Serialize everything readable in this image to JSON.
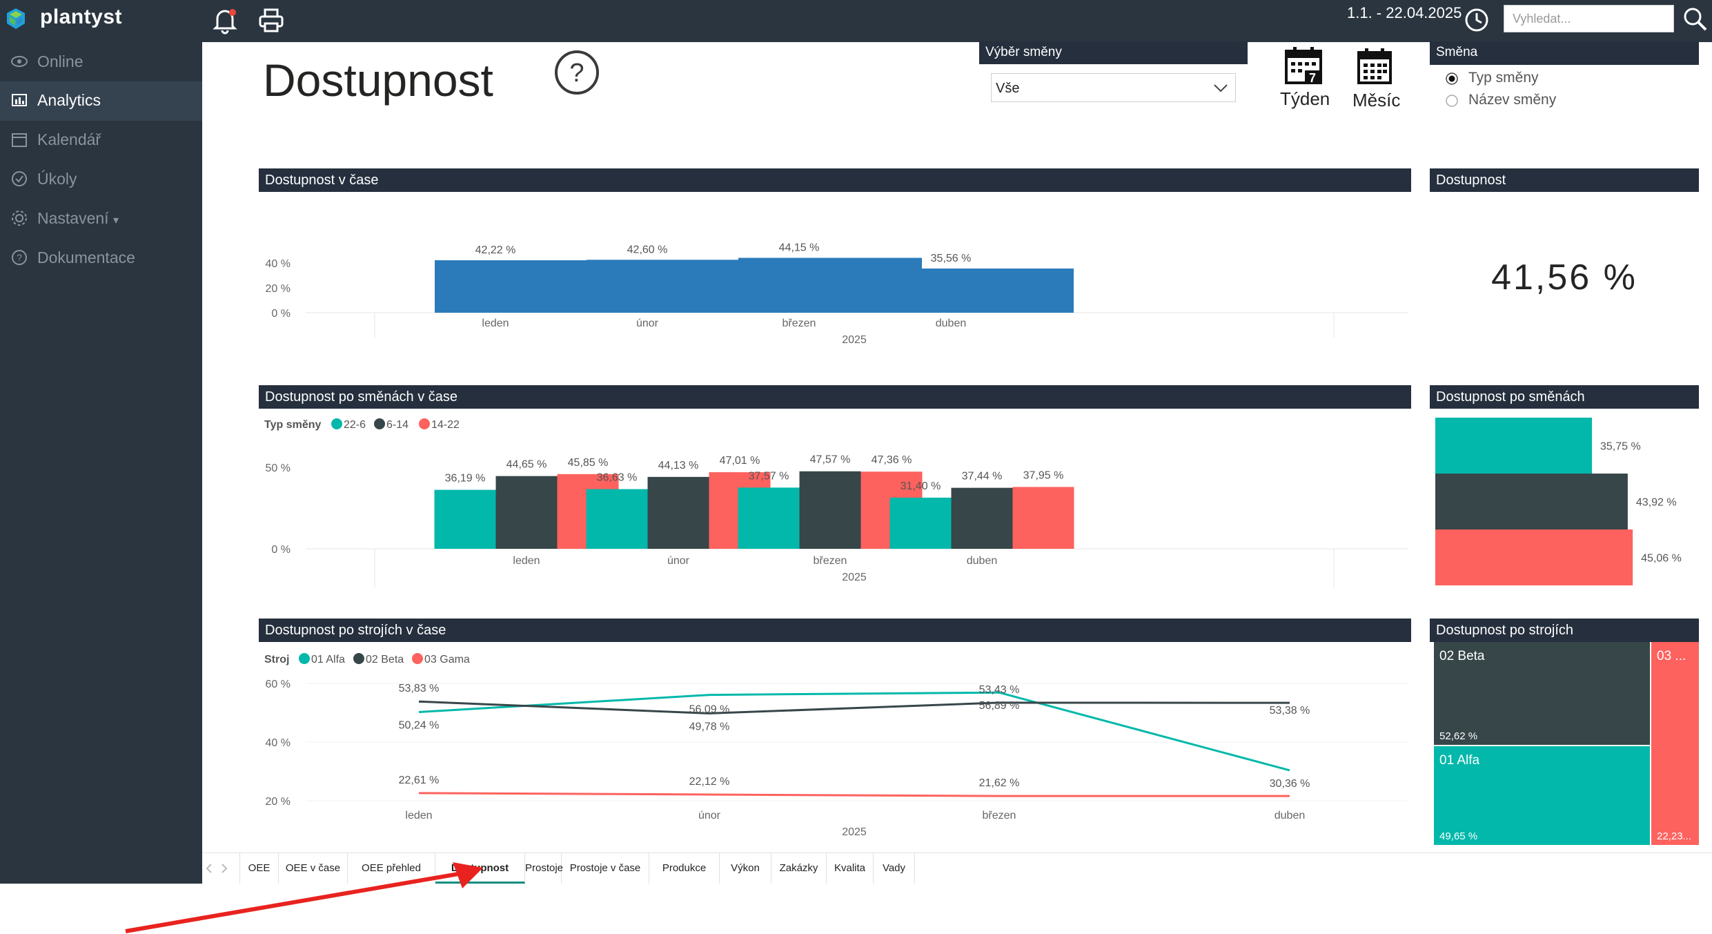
{
  "app": {
    "name": "plantyst"
  },
  "sidebar": {
    "items": [
      {
        "label": "Online",
        "icon": "eye-icon",
        "active": false
      },
      {
        "label": "Analytics",
        "icon": "bar-chart-icon",
        "active": true
      },
      {
        "label": "Kalendář",
        "icon": "calendar-icon",
        "active": false
      },
      {
        "label": "Úkoly",
        "icon": "check-circle-icon",
        "active": false
      },
      {
        "label": "Nastavení",
        "icon": "gear-icon",
        "active": false,
        "caret": "▾"
      },
      {
        "label": "Dokumentace",
        "icon": "help-circle-icon",
        "active": false
      }
    ]
  },
  "topbar": {
    "date_range": "1.1. - 22.04.2025",
    "search_placeholder": "Vyhledat..."
  },
  "report": {
    "title": "Dostupnost",
    "help_glyph": "?",
    "shift_select": {
      "header": "Výběr směny",
      "value": "Vše"
    },
    "period_buttons": {
      "week": "Týden",
      "week_day": "7",
      "month": "Měsíc"
    },
    "shift_radio": {
      "header": "Směna",
      "options": [
        {
          "label": "Typ směny",
          "checked": true
        },
        {
          "label": "Název směny",
          "checked": false
        }
      ]
    },
    "kpi": {
      "header": "Dostupnost",
      "value": "41,56 %"
    }
  },
  "chart_data": [
    {
      "type": "bar",
      "title": "Dostupnost v čase",
      "categories": [
        "leden",
        "únor",
        "březen",
        "duben"
      ],
      "xgroup": "2025",
      "values": [
        42.22,
        42.6,
        44.15,
        35.56
      ],
      "labels": [
        "42,22 %",
        "42,60 %",
        "44,15 %",
        "35,56 %"
      ],
      "yticks": [
        "0 %",
        "20 %",
        "40 %"
      ],
      "ylim": [
        0,
        50
      ],
      "color": "#2b7bba"
    },
    {
      "type": "bar",
      "title": "Dostupnost po směnách v čase",
      "legend_title": "Typ směny",
      "categories": [
        "leden",
        "únor",
        "březen",
        "duben"
      ],
      "xgroup": "2025",
      "series": [
        {
          "name": "22-6",
          "color": "#01b8aa",
          "values": [
            36.19,
            36.63,
            37.57,
            31.4
          ],
          "labels": [
            "36,19 %",
            "36,63 %",
            "37,57 %",
            "31,40 %"
          ]
        },
        {
          "name": "6-14",
          "color": "#374649",
          "values": [
            44.65,
            44.13,
            47.57,
            37.44
          ],
          "labels": [
            "44,65 %",
            "44,13 %",
            "47,57 %",
            "37,44 %"
          ]
        },
        {
          "name": "14-22",
          "color": "#fd625e",
          "values": [
            45.85,
            47.01,
            47.36,
            37.95
          ],
          "labels": [
            "45,85 %",
            "47,01 %",
            "47,36 %",
            "37,95 %"
          ]
        }
      ],
      "yticks": [
        "0 %",
        "50 %"
      ],
      "ylim": [
        0,
        50
      ]
    },
    {
      "type": "line",
      "title": "Dostupnost po strojích v čase",
      "legend_title": "Stroj",
      "categories": [
        "leden",
        "únor",
        "březen",
        "duben"
      ],
      "xgroup": "2025",
      "series": [
        {
          "name": "01 Alfa",
          "color": "#01b8aa",
          "values": [
            50.24,
            56.09,
            56.89,
            30.36
          ],
          "labels": [
            "50,24 %",
            "56,09 %",
            "56,89 %",
            "30,36 %"
          ]
        },
        {
          "name": "02 Beta",
          "color": "#374649",
          "values": [
            53.83,
            49.78,
            53.43,
            53.38
          ],
          "labels": [
            "53,83 %",
            "49,78 %",
            "53,43 %",
            "53,38 %"
          ]
        },
        {
          "name": "03 Gama",
          "color": "#fd625e",
          "values": [
            22.61,
            22.12,
            21.62,
            21.62
          ],
          "labels": [
            "22,61 %",
            "22,12 %",
            "21,62 %",
            ""
          ]
        }
      ],
      "yticks": [
        "20 %",
        "40 %",
        "60 %"
      ],
      "ylim": [
        20,
        60
      ]
    },
    {
      "type": "bar",
      "title": "Dostupnost po směnách",
      "orientation": "horizontal",
      "categories": [
        "22-6",
        "6-14",
        "14-22"
      ],
      "values": [
        35.75,
        43.92,
        45.06
      ],
      "labels": [
        "35,75 %",
        "43,92 %",
        "45,06 %"
      ],
      "colors": [
        "#01b8aa",
        "#374649",
        "#fd625e"
      ]
    },
    {
      "type": "heatmap",
      "title": "Dostupnost po strojích",
      "tiles": [
        {
          "name": "02 Beta",
          "value": 52.62,
          "label": "52,62 %",
          "color": "#374649"
        },
        {
          "name": "01 Alfa",
          "value": 49.65,
          "label": "49,65 %",
          "color": "#01b8aa"
        },
        {
          "name": "03 ...",
          "value": 22.23,
          "label": "22,23...",
          "color": "#fd625e"
        }
      ]
    }
  ],
  "tabs": [
    {
      "label": "OEE",
      "active": false
    },
    {
      "label": "OEE v čase",
      "active": false
    },
    {
      "label": "OEE přehled",
      "active": false
    },
    {
      "label": "Dostupnost",
      "active": true
    },
    {
      "label": "Prostoje",
      "active": false
    },
    {
      "label": "Prostoje v čase",
      "active": false
    },
    {
      "label": "Produkce",
      "active": false
    },
    {
      "label": "Výkon",
      "active": false
    },
    {
      "label": "Zakázky",
      "active": false
    },
    {
      "label": "Kvalita",
      "active": false
    },
    {
      "label": "Vady",
      "active": false
    }
  ]
}
